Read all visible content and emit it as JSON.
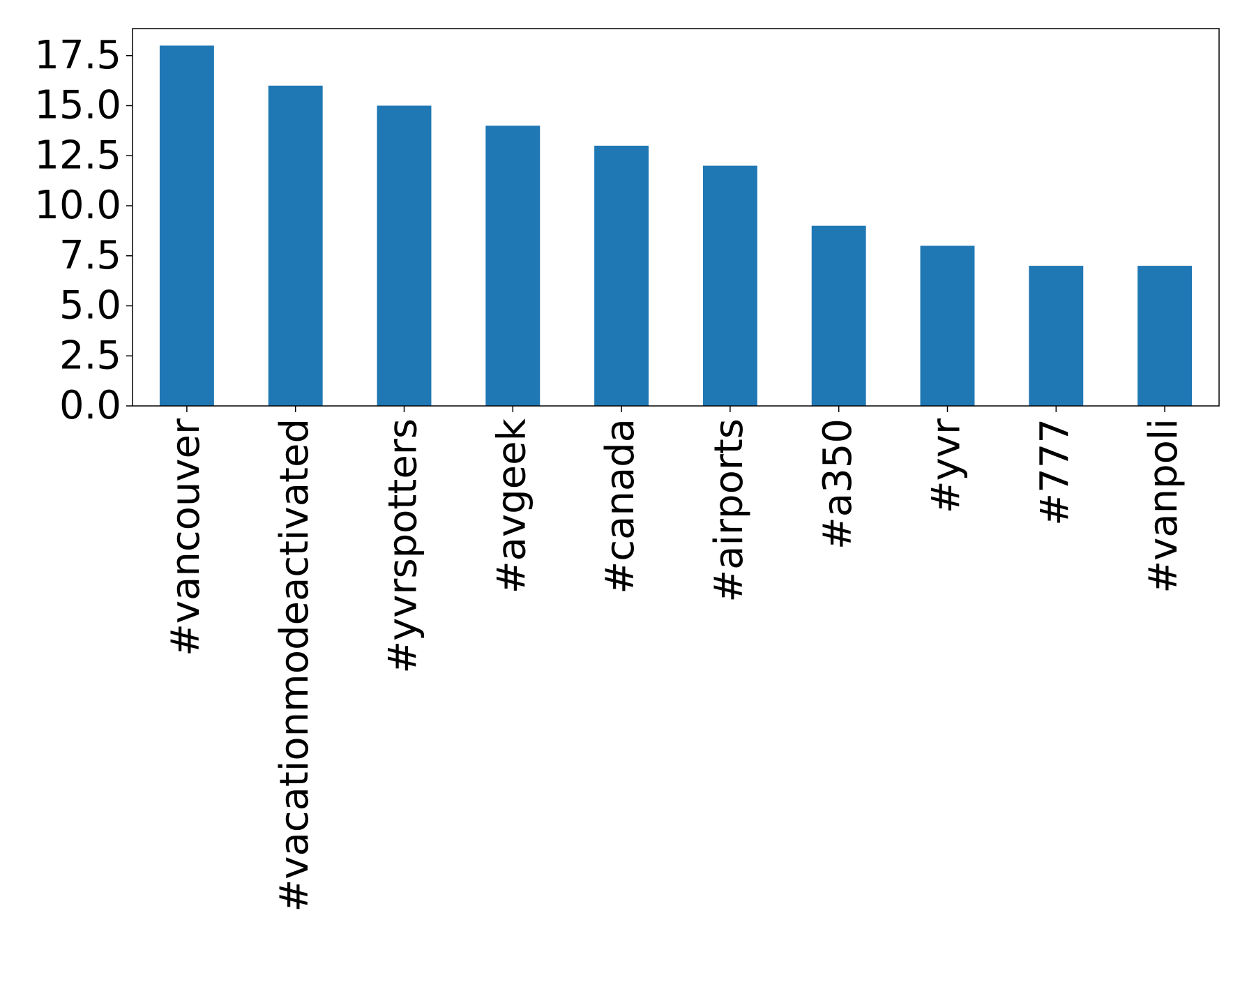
{
  "chart_data": {
    "type": "bar",
    "categories": [
      "#vancouver",
      "#vacationmodeactivated",
      "#yvrspotters",
      "#avgeek",
      "#canada",
      "#airports",
      "#a350",
      "#yvr",
      "#777",
      "#vanpoli"
    ],
    "values": [
      18,
      16,
      15,
      14,
      13,
      12,
      9,
      8,
      7,
      7
    ],
    "color": "#1f77b4",
    "ylim": [
      0,
      18.85
    ],
    "yticks": [
      {
        "value": 0,
        "label": "0.0"
      },
      2.5,
      {
        "value": 5,
        "label": "5.0"
      },
      7.5,
      {
        "value": 10,
        "label": "10.0"
      },
      12.5,
      {
        "value": 15,
        "label": "15.0"
      },
      17.5
    ],
    "grid": false
  }
}
